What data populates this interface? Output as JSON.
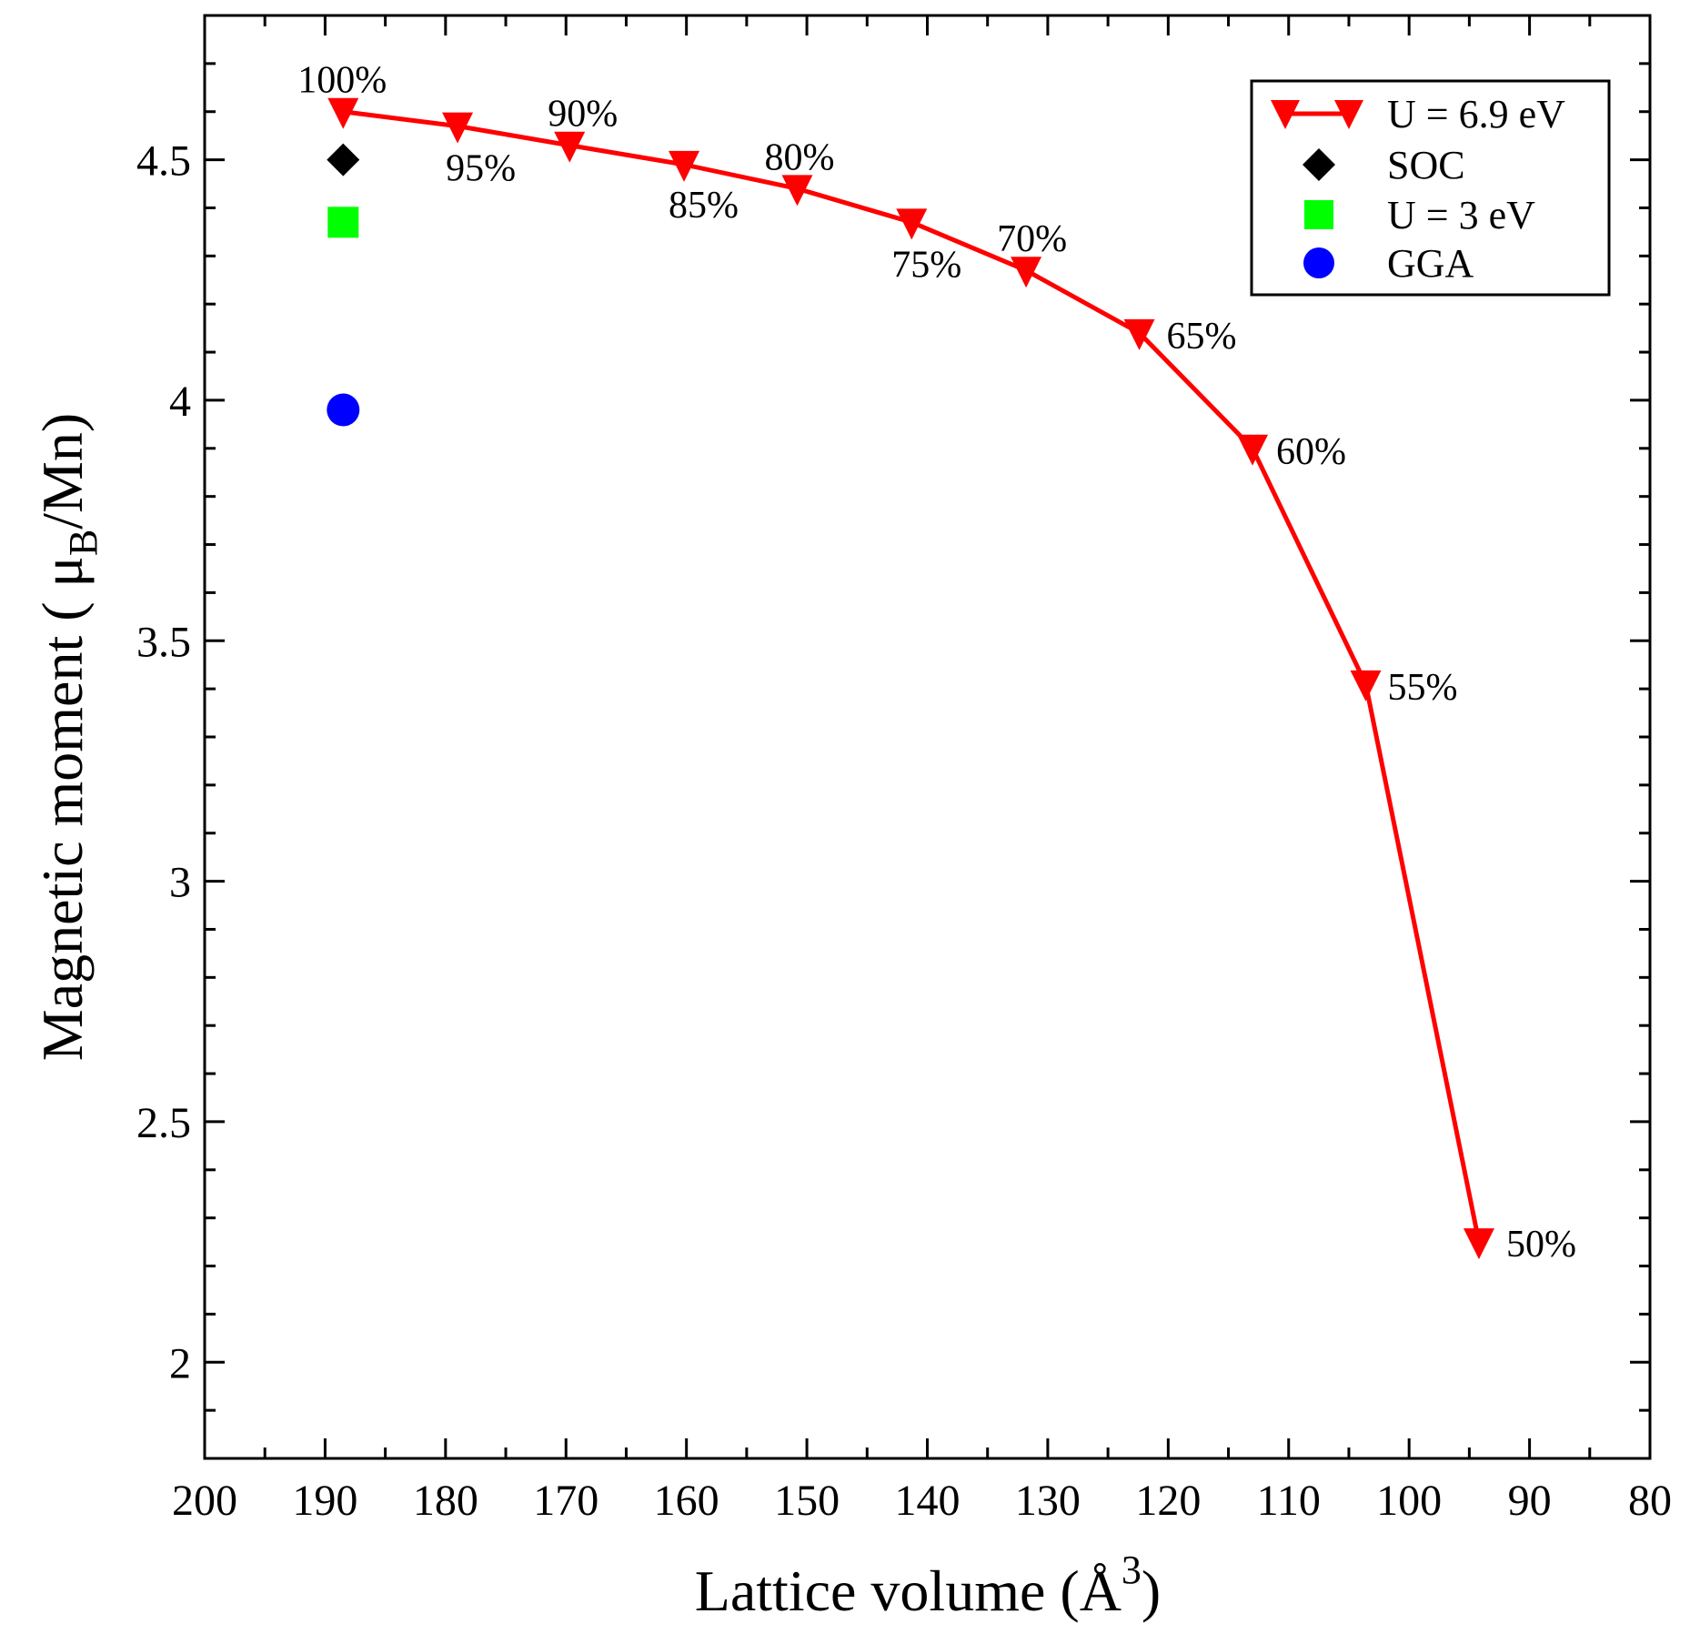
{
  "chart_data": {
    "type": "line",
    "xlabel": "Lattice volume (Å",
    "xlabel_superscript": "3",
    "xlabel_close": ")",
    "ylabel": "Magnetic moment ( μ",
    "ylabel_subscript": "B",
    "ylabel_suffix": "/Mn)",
    "xlim": [
      200,
      80
    ],
    "ylim": [
      1.8,
      4.8
    ],
    "x_ticks": [
      200,
      190,
      180,
      170,
      160,
      150,
      140,
      130,
      120,
      110,
      100,
      90,
      80
    ],
    "x_tick_labels": [
      "200",
      "190",
      "180",
      "170",
      "160",
      "150",
      "140",
      "130",
      "120",
      "110",
      "100",
      "90",
      "80"
    ],
    "y_ticks": [
      2,
      2.5,
      3,
      3.5,
      4,
      4.5
    ],
    "y_tick_labels": [
      "2",
      "2.5",
      "3",
      "3.5",
      "4",
      "4.5"
    ],
    "series": [
      {
        "name": "U = 6.9 eV",
        "color": "#ff0000",
        "marker": "triangle-down",
        "line": true,
        "x": [
          188.5,
          179.0,
          169.7,
          160.2,
          150.8,
          141.3,
          131.8,
          122.4,
          113.0,
          103.6,
          94.2
        ],
        "y": [
          4.6,
          4.57,
          4.53,
          4.49,
          4.44,
          4.37,
          4.27,
          4.14,
          3.9,
          3.41,
          2.25
        ],
        "labels": [
          "100%",
          "95%",
          "90%",
          "85%",
          "80%",
          "75%",
          "70%",
          "65%",
          "60%",
          "55%",
          "50%"
        ]
      },
      {
        "name": "SOC",
        "color": "#000000",
        "marker": "diamond",
        "line": false,
        "x": [
          188.5
        ],
        "y": [
          4.5
        ]
      },
      {
        "name": "U = 3 eV",
        "color": "#00ff00",
        "marker": "square",
        "line": false,
        "x": [
          188.5
        ],
        "y": [
          4.37
        ]
      },
      {
        "name": "GGA",
        "color": "#0000ff",
        "marker": "circle",
        "line": false,
        "x": [
          188.5
        ],
        "y": [
          3.98
        ]
      }
    ],
    "legend": [
      "U = 6.9 eV",
      "SOC",
      "U = 3 eV",
      "GGA"
    ],
    "legend_position": "top-right"
  }
}
